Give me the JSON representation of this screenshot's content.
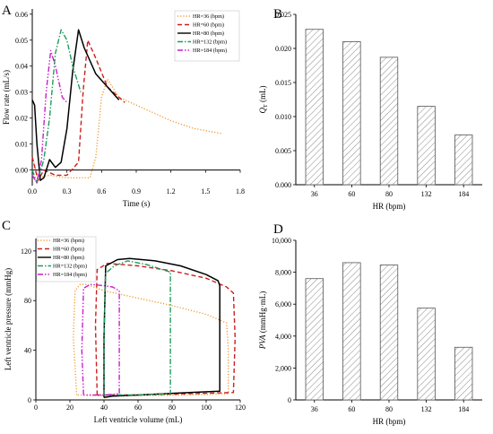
{
  "figure": {
    "panels": [
      {
        "letter": "A"
      },
      {
        "letter": "B"
      },
      {
        "letter": "C"
      },
      {
        "letter": "D"
      }
    ]
  },
  "chart_data": [
    {
      "panel": "A",
      "type": "line",
      "xlabel": "Time (s)",
      "ylabel": "Flow rate (mL/s)",
      "xlim": [
        0,
        1.8
      ],
      "ylim": [
        -0.006,
        0.062
      ],
      "xticks": [
        0.0,
        0.3,
        0.6,
        0.9,
        1.2,
        1.5,
        1.8
      ],
      "xtick_labels": [
        "0.0",
        "0.3",
        "0.6",
        "0.9",
        "1.2",
        "1.5",
        "1.8"
      ],
      "yticks": [
        0.0,
        0.01,
        0.02,
        0.03,
        0.04,
        0.05,
        0.06
      ],
      "ytick_labels": [
        "0.00",
        "0.01",
        "0.02",
        "0.03",
        "0.04",
        "0.05",
        "0.06"
      ],
      "legend_position": "top-right",
      "series": [
        {
          "name": "HR=36 (bpm)",
          "color": "#f39c33",
          "dash": "dot",
          "points": [
            [
              0,
              0.005
            ],
            [
              0.05,
              -0.003
            ],
            [
              0.15,
              -0.002
            ],
            [
              0.3,
              -0.003
            ],
            [
              0.5,
              -0.003
            ],
            [
              0.55,
              0.005
            ],
            [
              0.6,
              0.028
            ],
            [
              0.65,
              0.035
            ],
            [
              0.75,
              0.028
            ],
            [
              0.9,
              0.025
            ],
            [
              1.2,
              0.019
            ],
            [
              1.4,
              0.016
            ],
            [
              1.65,
              0.014
            ]
          ]
        },
        {
          "name": "HR=60 (bpm)",
          "color": "#cc1f1f",
          "dash": "dash",
          "points": [
            [
              0,
              0.005
            ],
            [
              0.05,
              -0.004
            ],
            [
              0.1,
              0.0
            ],
            [
              0.2,
              -0.002
            ],
            [
              0.3,
              -0.002
            ],
            [
              0.4,
              0.003
            ],
            [
              0.44,
              0.03
            ],
            [
              0.48,
              0.05
            ],
            [
              0.55,
              0.043
            ],
            [
              0.65,
              0.032
            ],
            [
              0.75,
              0.028
            ],
            [
              0.8,
              0.026
            ]
          ]
        },
        {
          "name": "HR=80 (bpm)",
          "color": "#000000",
          "dash": "solid",
          "points": [
            [
              0,
              0.027
            ],
            [
              0.02,
              0.025
            ],
            [
              0.04,
              0.01
            ],
            [
              0.07,
              -0.004
            ],
            [
              0.1,
              -0.003
            ],
            [
              0.15,
              0.004
            ],
            [
              0.2,
              0.001
            ],
            [
              0.25,
              0.003
            ],
            [
              0.3,
              0.016
            ],
            [
              0.35,
              0.038
            ],
            [
              0.4,
              0.054
            ],
            [
              0.45,
              0.047
            ],
            [
              0.55,
              0.037
            ],
            [
              0.65,
              0.032
            ],
            [
              0.75,
              0.027
            ]
          ]
        },
        {
          "name": "HR=132 (bpm)",
          "color": "#1f9c5c",
          "dash": "dashdot",
          "points": [
            [
              0,
              0.0
            ],
            [
              0.04,
              -0.005
            ],
            [
              0.1,
              0.004
            ],
            [
              0.15,
              0.02
            ],
            [
              0.2,
              0.045
            ],
            [
              0.25,
              0.054
            ],
            [
              0.3,
              0.05
            ],
            [
              0.35,
              0.04
            ],
            [
              0.42,
              0.03
            ]
          ]
        },
        {
          "name": "HR=184 (bpm)",
          "color": "#cc1fcc",
          "dash": "dashdotdot",
          "points": [
            [
              0,
              -0.002
            ],
            [
              0.04,
              -0.005
            ],
            [
              0.08,
              0.004
            ],
            [
              0.12,
              0.03
            ],
            [
              0.16,
              0.046
            ],
            [
              0.2,
              0.04
            ],
            [
              0.26,
              0.028
            ],
            [
              0.3,
              0.026
            ]
          ]
        }
      ]
    },
    {
      "panel": "B",
      "type": "bar",
      "xlabel": "HR (bpm)",
      "ylabel_main": "Q",
      "ylabel_sub": "T",
      "ylabel_unit": "(mL)",
      "categories": [
        "36",
        "60",
        "80",
        "132",
        "184"
      ],
      "values": [
        0.0228,
        0.021,
        0.0187,
        0.0115,
        0.0073
      ],
      "ylim": [
        0,
        0.025
      ],
      "yticks": [
        0.0,
        0.005,
        0.01,
        0.015,
        0.02,
        0.025
      ],
      "ytick_labels": [
        "0.000",
        "0.005",
        "0.010",
        "0.015",
        "0.020",
        "0.025"
      ]
    },
    {
      "panel": "C",
      "type": "line",
      "xlabel": "Left ventricle volume (mL)",
      "ylabel": "Left ventricle pressure (mmHg)",
      "xlim": [
        0,
        120
      ],
      "ylim": [
        0,
        130
      ],
      "xticks": [
        0,
        20,
        40,
        60,
        80,
        100,
        120
      ],
      "xtick_labels": [
        "0",
        "20",
        "40",
        "60",
        "80",
        "100",
        "120"
      ],
      "yticks": [
        0,
        40,
        80,
        120
      ],
      "ytick_labels": [
        "0",
        "40",
        "80",
        "120"
      ],
      "legend_position": "top-left",
      "series": [
        {
          "name": "HR=36 (bpm)",
          "color": "#f39c33",
          "dash": "dot",
          "points": [
            [
              24,
              4
            ],
            [
              22,
              50
            ],
            [
              23,
              88
            ],
            [
              26,
              93
            ],
            [
              30,
              93
            ],
            [
              40,
              88
            ],
            [
              60,
              82
            ],
            [
              80,
              76
            ],
            [
              100,
              69
            ],
            [
              112,
              62
            ],
            [
              113,
              40
            ],
            [
              113,
              5
            ],
            [
              90,
              4
            ],
            [
              60,
              3.5
            ],
            [
              40,
              3.5
            ],
            [
              24,
              4
            ]
          ]
        },
        {
          "name": "HR=60 (bpm)",
          "color": "#cc1f1f",
          "dash": "dash",
          "points": [
            [
              36,
              4
            ],
            [
              35,
              60
            ],
            [
              36,
              105
            ],
            [
              42,
              110
            ],
            [
              60,
              108
            ],
            [
              80,
              104
            ],
            [
              100,
              98
            ],
            [
              112,
              91
            ],
            [
              116,
              86
            ],
            [
              117,
              50
            ],
            [
              116,
              6
            ],
            [
              90,
              5
            ],
            [
              60,
              4
            ],
            [
              40,
              4
            ],
            [
              36,
              4
            ]
          ]
        },
        {
          "name": "HR=80 (bpm)",
          "color": "#000000",
          "dash": "solid",
          "points": [
            [
              40,
              2
            ],
            [
              40,
              50
            ],
            [
              41,
              108
            ],
            [
              48,
              113
            ],
            [
              55,
              114
            ],
            [
              70,
              112
            ],
            [
              85,
              108
            ],
            [
              100,
              101
            ],
            [
              107,
              96
            ],
            [
              108,
              92
            ],
            [
              108,
              40
            ],
            [
              108,
              7
            ],
            [
              90,
              6
            ],
            [
              60,
              4
            ],
            [
              45,
              3
            ],
            [
              40,
              2
            ]
          ]
        },
        {
          "name": "HR=132 (bpm)",
          "color": "#1f9c5c",
          "dash": "dashdot",
          "points": [
            [
              40,
              4
            ],
            [
              40,
              50
            ],
            [
              41,
              102
            ],
            [
              46,
              108
            ],
            [
              54,
              112
            ],
            [
              65,
              109
            ],
            [
              79,
              103
            ],
            [
              79,
              60
            ],
            [
              79,
              5
            ],
            [
              60,
              4
            ],
            [
              45,
              4
            ],
            [
              40,
              4
            ]
          ]
        },
        {
          "name": "HR=184 (bpm)",
          "color": "#cc1fcc",
          "dash": "dashdotdot",
          "points": [
            [
              28,
              4
            ],
            [
              27,
              40
            ],
            [
              28,
              90
            ],
            [
              32,
              93
            ],
            [
              40,
              92
            ],
            [
              45,
              91
            ],
            [
              49,
              88
            ],
            [
              49,
              40
            ],
            [
              49,
              5
            ],
            [
              40,
              4
            ],
            [
              30,
              4
            ],
            [
              28,
              4
            ]
          ]
        }
      ]
    },
    {
      "panel": "D",
      "type": "bar",
      "xlabel": "HR (bpm)",
      "ylabel_main": "PVA",
      "ylabel_unit": "(mmHg·mL)",
      "categories": [
        "36",
        "60",
        "80",
        "132",
        "184"
      ],
      "values": [
        7600,
        8600,
        8450,
        5750,
        3300
      ],
      "ylim": [
        0,
        10000
      ],
      "yticks": [
        0,
        2000,
        4000,
        6000,
        8000,
        10000
      ],
      "ytick_labels": [
        "0",
        "2,000",
        "4,000",
        "6,000",
        "8,000",
        "10,000"
      ]
    }
  ]
}
